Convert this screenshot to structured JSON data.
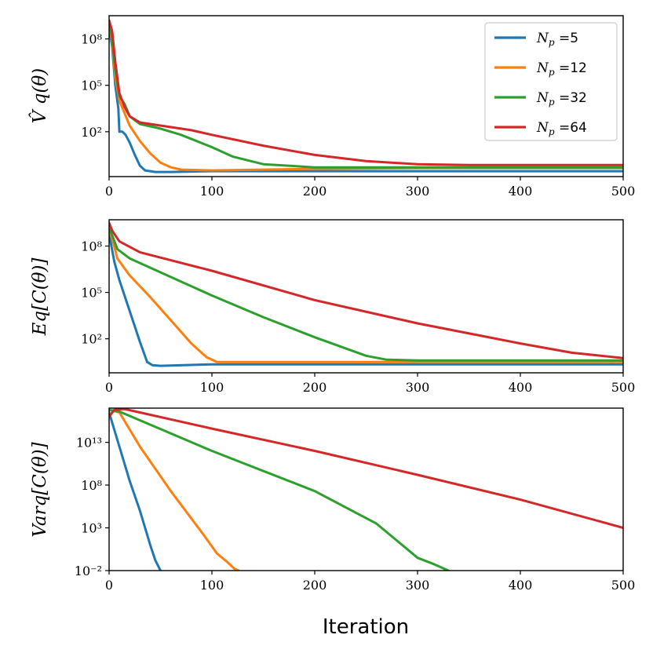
{
  "chart_data": [
    {
      "type": "line",
      "ylabel": "V̂^q(θ)",
      "ylabel_display": "V̂ q(θ)",
      "yscale": "log",
      "xlim": [
        0,
        500
      ],
      "ylim_log10": [
        -0.9,
        9.5
      ],
      "xticks": [
        0,
        100,
        200,
        300,
        400,
        500
      ],
      "yticks": [
        {
          "value_log10": 2,
          "label": "10²"
        },
        {
          "value_log10": 5,
          "label": "10⁵"
        },
        {
          "value_log10": 8,
          "label": "10⁸"
        }
      ],
      "legend": {
        "placement": "top-right",
        "prefix": "N",
        "subscript": "p",
        "sep": " ="
      },
      "series": [
        {
          "name": "5",
          "color": "#1f77b4",
          "points_log10": [
            [
              0,
              8.8
            ],
            [
              3,
              7.5
            ],
            [
              6,
              5.0
            ],
            [
              9,
              3.5
            ],
            [
              10,
              2.0
            ],
            [
              13,
              2.0
            ],
            [
              16,
              1.8
            ],
            [
              20,
              1.3
            ],
            [
              25,
              0.5
            ],
            [
              30,
              -0.2
            ],
            [
              35,
              -0.5
            ],
            [
              45,
              -0.6
            ],
            [
              60,
              -0.6
            ],
            [
              100,
              -0.55
            ],
            [
              200,
              -0.55
            ],
            [
              300,
              -0.55
            ],
            [
              400,
              -0.55
            ],
            [
              500,
              -0.55
            ]
          ]
        },
        {
          "name": "12",
          "color": "#ff7f0e",
          "points_log10": [
            [
              0,
              9.0
            ],
            [
              3,
              7.8
            ],
            [
              6,
              5.5
            ],
            [
              10,
              4.0
            ],
            [
              15,
              3.2
            ],
            [
              20,
              2.4
            ],
            [
              30,
              1.4
            ],
            [
              40,
              0.6
            ],
            [
              50,
              0.0
            ],
            [
              60,
              -0.3
            ],
            [
              70,
              -0.45
            ],
            [
              100,
              -0.5
            ],
            [
              150,
              -0.45
            ],
            [
              200,
              -0.4
            ],
            [
              300,
              -0.35
            ],
            [
              400,
              -0.35
            ],
            [
              500,
              -0.35
            ]
          ]
        },
        {
          "name": "32",
          "color": "#2ca02c",
          "points_log10": [
            [
              0,
              9.1
            ],
            [
              3,
              8.0
            ],
            [
              6,
              6.0
            ],
            [
              10,
              4.3
            ],
            [
              15,
              3.8
            ],
            [
              20,
              3.0
            ],
            [
              30,
              2.5
            ],
            [
              50,
              2.2
            ],
            [
              70,
              1.8
            ],
            [
              100,
              1.0
            ],
            [
              120,
              0.4
            ],
            [
              150,
              -0.1
            ],
            [
              200,
              -0.3
            ],
            [
              300,
              -0.3
            ],
            [
              400,
              -0.3
            ],
            [
              500,
              -0.3
            ]
          ]
        },
        {
          "name": "64",
          "color": "#d62728",
          "points_log10": [
            [
              0,
              9.2
            ],
            [
              3,
              8.5
            ],
            [
              6,
              6.5
            ],
            [
              10,
              4.5
            ],
            [
              15,
              3.6
            ],
            [
              20,
              3.0
            ],
            [
              30,
              2.6
            ],
            [
              50,
              2.4
            ],
            [
              80,
              2.1
            ],
            [
              100,
              1.8
            ],
            [
              150,
              1.1
            ],
            [
              200,
              0.5
            ],
            [
              250,
              0.1
            ],
            [
              300,
              -0.1
            ],
            [
              350,
              -0.15
            ],
            [
              400,
              -0.15
            ],
            [
              500,
              -0.15
            ]
          ]
        }
      ]
    },
    {
      "type": "line",
      "ylabel": "E_q[C(θ)]",
      "ylabel_display": "Eq[C(θ)]",
      "yscale": "log",
      "xlim": [
        0,
        500
      ],
      "ylim_log10": [
        -0.2,
        9.7
      ],
      "xticks": [
        0,
        100,
        200,
        300,
        400,
        500
      ],
      "yticks": [
        {
          "value_log10": 2,
          "label": "10²"
        },
        {
          "value_log10": 5,
          "label": "10⁵"
        },
        {
          "value_log10": 8,
          "label": "10⁸"
        }
      ],
      "series": [
        {
          "name": "5",
          "color": "#1f77b4",
          "points_log10": [
            [
              0,
              8.8
            ],
            [
              5,
              7.0
            ],
            [
              10,
              5.8
            ],
            [
              20,
              3.8
            ],
            [
              30,
              1.8
            ],
            [
              37,
              0.5
            ],
            [
              42,
              0.3
            ],
            [
              50,
              0.25
            ],
            [
              100,
              0.35
            ],
            [
              200,
              0.35
            ],
            [
              300,
              0.35
            ],
            [
              400,
              0.35
            ],
            [
              500,
              0.35
            ]
          ]
        },
        {
          "name": "12",
          "color": "#ff7f0e",
          "points_log10": [
            [
              0,
              9.0
            ],
            [
              3,
              8.5
            ],
            [
              8,
              7.2
            ],
            [
              20,
              6.1
            ],
            [
              40,
              4.7
            ],
            [
              60,
              3.2
            ],
            [
              80,
              1.7
            ],
            [
              95,
              0.8
            ],
            [
              105,
              0.5
            ],
            [
              150,
              0.5
            ],
            [
              200,
              0.5
            ],
            [
              300,
              0.5
            ],
            [
              400,
              0.5
            ],
            [
              500,
              0.5
            ]
          ]
        },
        {
          "name": "32",
          "color": "#2ca02c",
          "points_log10": [
            [
              0,
              9.1
            ],
            [
              3,
              8.7
            ],
            [
              8,
              7.8
            ],
            [
              20,
              7.2
            ],
            [
              50,
              6.3
            ],
            [
              100,
              4.8
            ],
            [
              150,
              3.4
            ],
            [
              200,
              2.1
            ],
            [
              250,
              0.9
            ],
            [
              270,
              0.65
            ],
            [
              300,
              0.6
            ],
            [
              400,
              0.6
            ],
            [
              500,
              0.6
            ]
          ]
        },
        {
          "name": "64",
          "color": "#d62728",
          "points_log10": [
            [
              0,
              9.5
            ],
            [
              3,
              9.0
            ],
            [
              10,
              8.3
            ],
            [
              30,
              7.6
            ],
            [
              100,
              6.4
            ],
            [
              200,
              4.5
            ],
            [
              300,
              3.0
            ],
            [
              400,
              1.7
            ],
            [
              450,
              1.1
            ],
            [
              500,
              0.75
            ]
          ]
        }
      ]
    },
    {
      "type": "line",
      "ylabel": "Var_q[C(θ)]",
      "ylabel_display": "Varq[C(θ)]",
      "yscale": "log",
      "xlim": [
        0,
        500
      ],
      "ylim_log10": [
        -2,
        17
      ],
      "xticks": [
        0,
        100,
        200,
        300,
        400,
        500
      ],
      "yticks": [
        {
          "value_log10": -2,
          "label": "10⁻²"
        },
        {
          "value_log10": 3,
          "label": "10³"
        },
        {
          "value_log10": 8,
          "label": "10⁸"
        },
        {
          "value_log10": 13,
          "label": "10¹³"
        }
      ],
      "series": [
        {
          "name": "5",
          "color": "#1f77b4",
          "points_log10": [
            [
              0,
              16.5
            ],
            [
              10,
              12.5
            ],
            [
              20,
              8.5
            ],
            [
              30,
              5.0
            ],
            [
              40,
              1.0
            ],
            [
              45,
              -0.8
            ],
            [
              50,
              -2.0
            ]
          ]
        },
        {
          "name": "12",
          "color": "#ff7f0e",
          "points_log10": [
            [
              0,
              16.8
            ],
            [
              10,
              16.5
            ],
            [
              30,
              12.5
            ],
            [
              60,
              7.3
            ],
            [
              90,
              2.5
            ],
            [
              105,
              0.0
            ],
            [
              115,
              -1.0
            ],
            [
              122,
              -1.8
            ],
            [
              126,
              -2.0
            ]
          ]
        },
        {
          "name": "32",
          "color": "#2ca02c",
          "points_log10": [
            [
              0,
              16.8
            ],
            [
              10,
              16.6
            ],
            [
              100,
              12.0
            ],
            [
              200,
              7.3
            ],
            [
              260,
              3.5
            ],
            [
              280,
              1.5
            ],
            [
              300,
              -0.5
            ],
            [
              315,
              -1.2
            ],
            [
              330,
              -2.0
            ]
          ]
        },
        {
          "name": "64",
          "color": "#d62728",
          "points_log10": [
            [
              0,
              16.0
            ],
            [
              5,
              16.8
            ],
            [
              15,
              16.9
            ],
            [
              100,
              14.6
            ],
            [
              200,
              12.0
            ],
            [
              300,
              9.2
            ],
            [
              400,
              6.3
            ],
            [
              500,
              3.0
            ]
          ]
        }
      ]
    }
  ],
  "xlabel": "Iteration"
}
